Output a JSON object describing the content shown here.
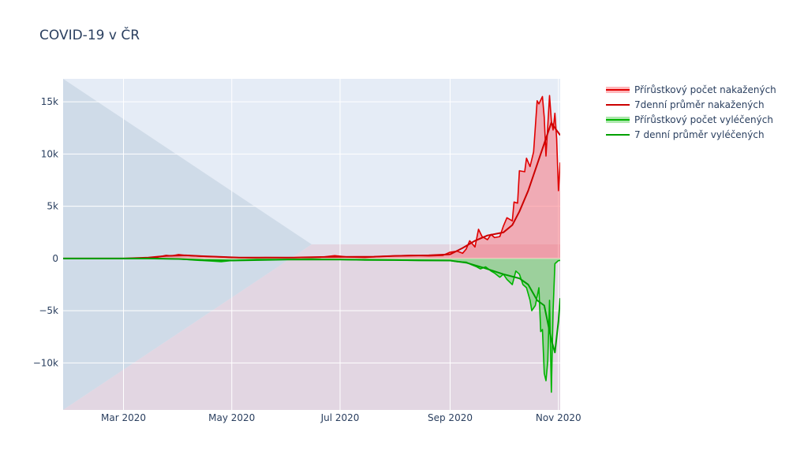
{
  "chart_data": {
    "type": "line",
    "title": "COVID-19 v ČR",
    "xlabel": "",
    "ylabel": "",
    "x_range": [
      "2020-01-27",
      "2020-11-02"
    ],
    "ylim": [
      -14500,
      17200
    ],
    "y_ticks": [
      15000,
      10000,
      5000,
      0,
      -5000,
      -10000
    ],
    "y_tick_labels": [
      "15k",
      "10k",
      "5k",
      "0",
      "−5k",
      "−10k"
    ],
    "x_ticks": [
      "2020-03-01",
      "2020-05-01",
      "2020-07-01",
      "2020-09-01",
      "2020-11-01"
    ],
    "x_tick_labels": [
      "Mar 2020",
      "May 2020",
      "Jul 2020",
      "Sep 2020",
      "Nov 2020"
    ],
    "grid": true,
    "legend_position": "top-right",
    "series": [
      {
        "name": "Přírůstkový počet nakažených",
        "color": "#e00000",
        "fill": "tozeroy",
        "x": [
          "2020-01-27",
          "2020-02-15",
          "2020-03-01",
          "2020-03-10",
          "2020-03-20",
          "2020-03-25",
          "2020-03-28",
          "2020-04-01",
          "2020-04-05",
          "2020-04-10",
          "2020-04-15",
          "2020-04-20",
          "2020-04-25",
          "2020-05-01",
          "2020-05-10",
          "2020-05-20",
          "2020-06-01",
          "2020-06-10",
          "2020-06-20",
          "2020-06-28",
          "2020-07-05",
          "2020-07-15",
          "2020-07-25",
          "2020-08-01",
          "2020-08-10",
          "2020-08-20",
          "2020-08-28",
          "2020-09-01",
          "2020-09-05",
          "2020-09-08",
          "2020-09-10",
          "2020-09-12",
          "2020-09-15",
          "2020-09-17",
          "2020-09-19",
          "2020-09-22",
          "2020-09-24",
          "2020-09-26",
          "2020-09-29",
          "2020-10-01",
          "2020-10-03",
          "2020-10-06",
          "2020-10-07",
          "2020-10-09",
          "2020-10-10",
          "2020-10-13",
          "2020-10-14",
          "2020-10-16",
          "2020-10-18",
          "2020-10-20",
          "2020-10-21",
          "2020-10-23",
          "2020-10-24",
          "2020-10-25",
          "2020-10-27",
          "2020-10-28",
          "2020-10-29",
          "2020-10-30",
          "2020-10-31",
          "2020-11-01",
          "2020-11-02"
        ],
        "values": [
          0,
          0,
          0,
          10,
          120,
          300,
          250,
          380,
          300,
          250,
          200,
          180,
          150,
          100,
          70,
          90,
          80,
          100,
          120,
          270,
          150,
          100,
          200,
          250,
          300,
          250,
          300,
          600,
          700,
          500,
          900,
          1700,
          1100,
          2800,
          2100,
          1800,
          2300,
          2000,
          2100,
          3100,
          3900,
          3600,
          5400,
          5300,
          8400,
          8300,
          9600,
          8800,
          10200,
          15100,
          14800,
          15500,
          13500,
          9800,
          15600,
          13200,
          12300,
          13900,
          11500,
          6500,
          9200
        ]
      },
      {
        "name": "7denní průměr nakažených",
        "color": "#cc0000",
        "fill": "none",
        "x": [
          "2020-01-27",
          "2020-02-15",
          "2020-03-01",
          "2020-03-15",
          "2020-03-25",
          "2020-04-05",
          "2020-04-15",
          "2020-04-25",
          "2020-05-05",
          "2020-05-20",
          "2020-06-05",
          "2020-06-20",
          "2020-07-01",
          "2020-07-20",
          "2020-08-01",
          "2020-08-20",
          "2020-09-01",
          "2020-09-08",
          "2020-09-15",
          "2020-09-22",
          "2020-10-01",
          "2020-10-06",
          "2020-10-10",
          "2020-10-15",
          "2020-10-20",
          "2020-10-25",
          "2020-10-28",
          "2020-10-30",
          "2020-11-02"
        ],
        "values": [
          0,
          0,
          0,
          80,
          250,
          300,
          220,
          150,
          90,
          80,
          90,
          140,
          150,
          170,
          250,
          300,
          400,
          1000,
          1700,
          2200,
          2500,
          3200,
          4500,
          6500,
          9000,
          11500,
          13000,
          12500,
          11800
        ]
      },
      {
        "name": "Přírůstkový počet vyléčených",
        "color": "#00b400",
        "fill": "tozeroy",
        "x": [
          "2020-01-27",
          "2020-03-15",
          "2020-04-01",
          "2020-04-10",
          "2020-04-20",
          "2020-04-25",
          "2020-05-01",
          "2020-05-15",
          "2020-06-01",
          "2020-06-15",
          "2020-07-01",
          "2020-07-15",
          "2020-08-01",
          "2020-08-15",
          "2020-09-01",
          "2020-09-05",
          "2020-09-10",
          "2020-09-13",
          "2020-09-16",
          "2020-09-18",
          "2020-09-21",
          "2020-09-24",
          "2020-09-26",
          "2020-09-29",
          "2020-10-01",
          "2020-10-03",
          "2020-10-06",
          "2020-10-08",
          "2020-10-10",
          "2020-10-12",
          "2020-10-14",
          "2020-10-16",
          "2020-10-17",
          "2020-10-19",
          "2020-10-21",
          "2020-10-22",
          "2020-10-23",
          "2020-10-24",
          "2020-10-25",
          "2020-10-26",
          "2020-10-27",
          "2020-10-28",
          "2020-10-29",
          "2020-10-30",
          "2020-11-01",
          "2020-11-02"
        ],
        "values": [
          0,
          0,
          -50,
          -150,
          -250,
          -300,
          -200,
          -100,
          -100,
          -50,
          -100,
          -150,
          -150,
          -200,
          -200,
          -300,
          -350,
          -600,
          -800,
          -1000,
          -800,
          -1200,
          -1400,
          -1800,
          -1500,
          -2000,
          -2500,
          -1200,
          -1500,
          -2500,
          -2800,
          -4000,
          -5000,
          -4500,
          -2800,
          -7000,
          -6800,
          -11000,
          -11700,
          -9800,
          -4000,
          -12800,
          -5000,
          -500,
          -200,
          -200
        ]
      },
      {
        "name": "7 denní průměr vyléčených",
        "color": "#00a000",
        "fill": "none",
        "x": [
          "2020-01-27",
          "2020-03-15",
          "2020-04-01",
          "2020-04-15",
          "2020-05-01",
          "2020-06-01",
          "2020-07-01",
          "2020-08-01",
          "2020-09-01",
          "2020-09-10",
          "2020-09-20",
          "2020-10-01",
          "2020-10-10",
          "2020-10-15",
          "2020-10-20",
          "2020-10-24",
          "2020-10-28",
          "2020-10-30",
          "2020-11-01",
          "2020-11-02"
        ],
        "values": [
          0,
          0,
          -50,
          -150,
          -200,
          -100,
          -100,
          -150,
          -200,
          -400,
          -900,
          -1500,
          -1900,
          -2500,
          -4000,
          -4500,
          -7800,
          -9000,
          -6000,
          -3800
        ]
      }
    ]
  }
}
